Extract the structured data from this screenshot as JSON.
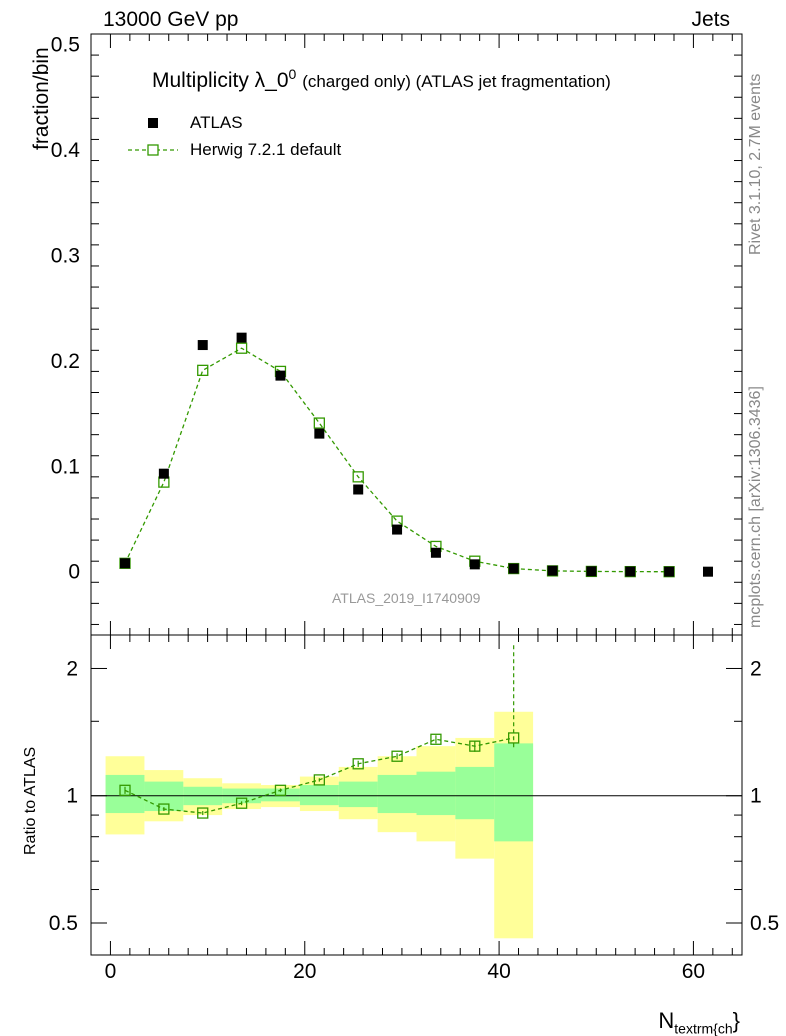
{
  "header": {
    "energy": "13000 GeV pp",
    "process": "Jets"
  },
  "side_labels": {
    "rivet": "Rivet 3.1.10,  2.7M events",
    "mcplots": "mcplots.cern.ch [arXiv:1306.3436]"
  },
  "analysis_id": "ATLAS_2019_I1740909",
  "chart_data": {
    "type": "scatter",
    "title_main": "Multiplicity λ_0",
    "title_sup": "0",
    "title_rest": "(charged only) (ATLAS jet fragmentation)",
    "ylabel": "fraction/bin",
    "ratio_ylabel": "Ratio to ATLAS",
    "xlabel": "N",
    "xlabel_sub": "textrm{ch",
    "xlabel_tail": "}",
    "xlim": [
      -2,
      65
    ],
    "ylim": [
      -0.06,
      0.51
    ],
    "ratio_ylim": [
      0.42,
      2.4
    ],
    "x_ticks": [
      "0",
      "20",
      "40",
      "60"
    ],
    "y_ticks": [
      "0",
      "0.1",
      "0.2",
      "0.3",
      "0.4",
      "0.5"
    ],
    "ratio_ticks": [
      "0.5",
      "1",
      "2"
    ],
    "legend": {
      "data_label": "ATLAS",
      "mc_label": "Herwig 7.2.1 default"
    },
    "series": [
      {
        "name": "ATLAS",
        "x": [
          1.5,
          5.5,
          9.5,
          13.5,
          17.5,
          21.5,
          25.5,
          29.5,
          33.5,
          37.5,
          41.5,
          45.5,
          49.5,
          53.5,
          57.5,
          61.5
        ],
        "values": [
          0.008,
          0.093,
          0.215,
          0.222,
          0.186,
          0.131,
          0.078,
          0.04,
          0.018,
          0.007,
          0.003,
          0.001,
          0.0004,
          0.0002,
          0.0001,
          5e-05
        ]
      },
      {
        "name": "Herwig 7.2.1 default",
        "x": [
          1.5,
          5.5,
          9.5,
          13.5,
          17.5,
          21.5,
          25.5,
          29.5,
          33.5,
          37.5,
          41.5,
          45.5,
          49.5,
          53.5,
          57.5
        ],
        "values": [
          0.008,
          0.085,
          0.191,
          0.212,
          0.19,
          0.141,
          0.09,
          0.048,
          0.024,
          0.01,
          0.003,
          0.0008,
          0.0003,
          0.0001,
          4e-05
        ]
      }
    ],
    "ratio": {
      "x": [
        1.5,
        5.5,
        9.5,
        13.5,
        17.5,
        21.5,
        25.5,
        29.5,
        33.5,
        37.5,
        41.5
      ],
      "values": [
        1.03,
        0.93,
        0.91,
        0.96,
        1.03,
        1.09,
        1.19,
        1.24,
        1.36,
        1.31,
        1.37
      ],
      "err_up": [
        0.02,
        0.01,
        0.01,
        0.01,
        0.01,
        0.01,
        0.02,
        0.02,
        0.03,
        0.04,
        0.9
      ],
      "err_down": [
        0.02,
        0.01,
        0.01,
        0.01,
        0.01,
        0.01,
        0.02,
        0.02,
        0.03,
        0.04,
        0.07
      ]
    },
    "bands": {
      "edges": [
        -0.5,
        3.5,
        7.5,
        11.5,
        15.5,
        19.5,
        23.5,
        27.5,
        31.5,
        35.5,
        39.5,
        43.5
      ],
      "inner_low": [
        0.91,
        0.92,
        0.95,
        0.96,
        0.97,
        0.95,
        0.94,
        0.91,
        0.9,
        0.88,
        0.78
      ],
      "inner_high": [
        1.12,
        1.08,
        1.05,
        1.04,
        1.04,
        1.06,
        1.08,
        1.12,
        1.14,
        1.17,
        1.33
      ],
      "outer_low": [
        0.81,
        0.87,
        0.9,
        0.93,
        0.94,
        0.92,
        0.88,
        0.82,
        0.78,
        0.71,
        0.46
      ],
      "outer_high": [
        1.24,
        1.15,
        1.1,
        1.07,
        1.06,
        1.11,
        1.17,
        1.24,
        1.31,
        1.37,
        1.58
      ]
    },
    "colors": {
      "data": "#000000",
      "mc": "#339900",
      "inner_band": "#99ff99",
      "outer_band": "#ffff99"
    }
  }
}
